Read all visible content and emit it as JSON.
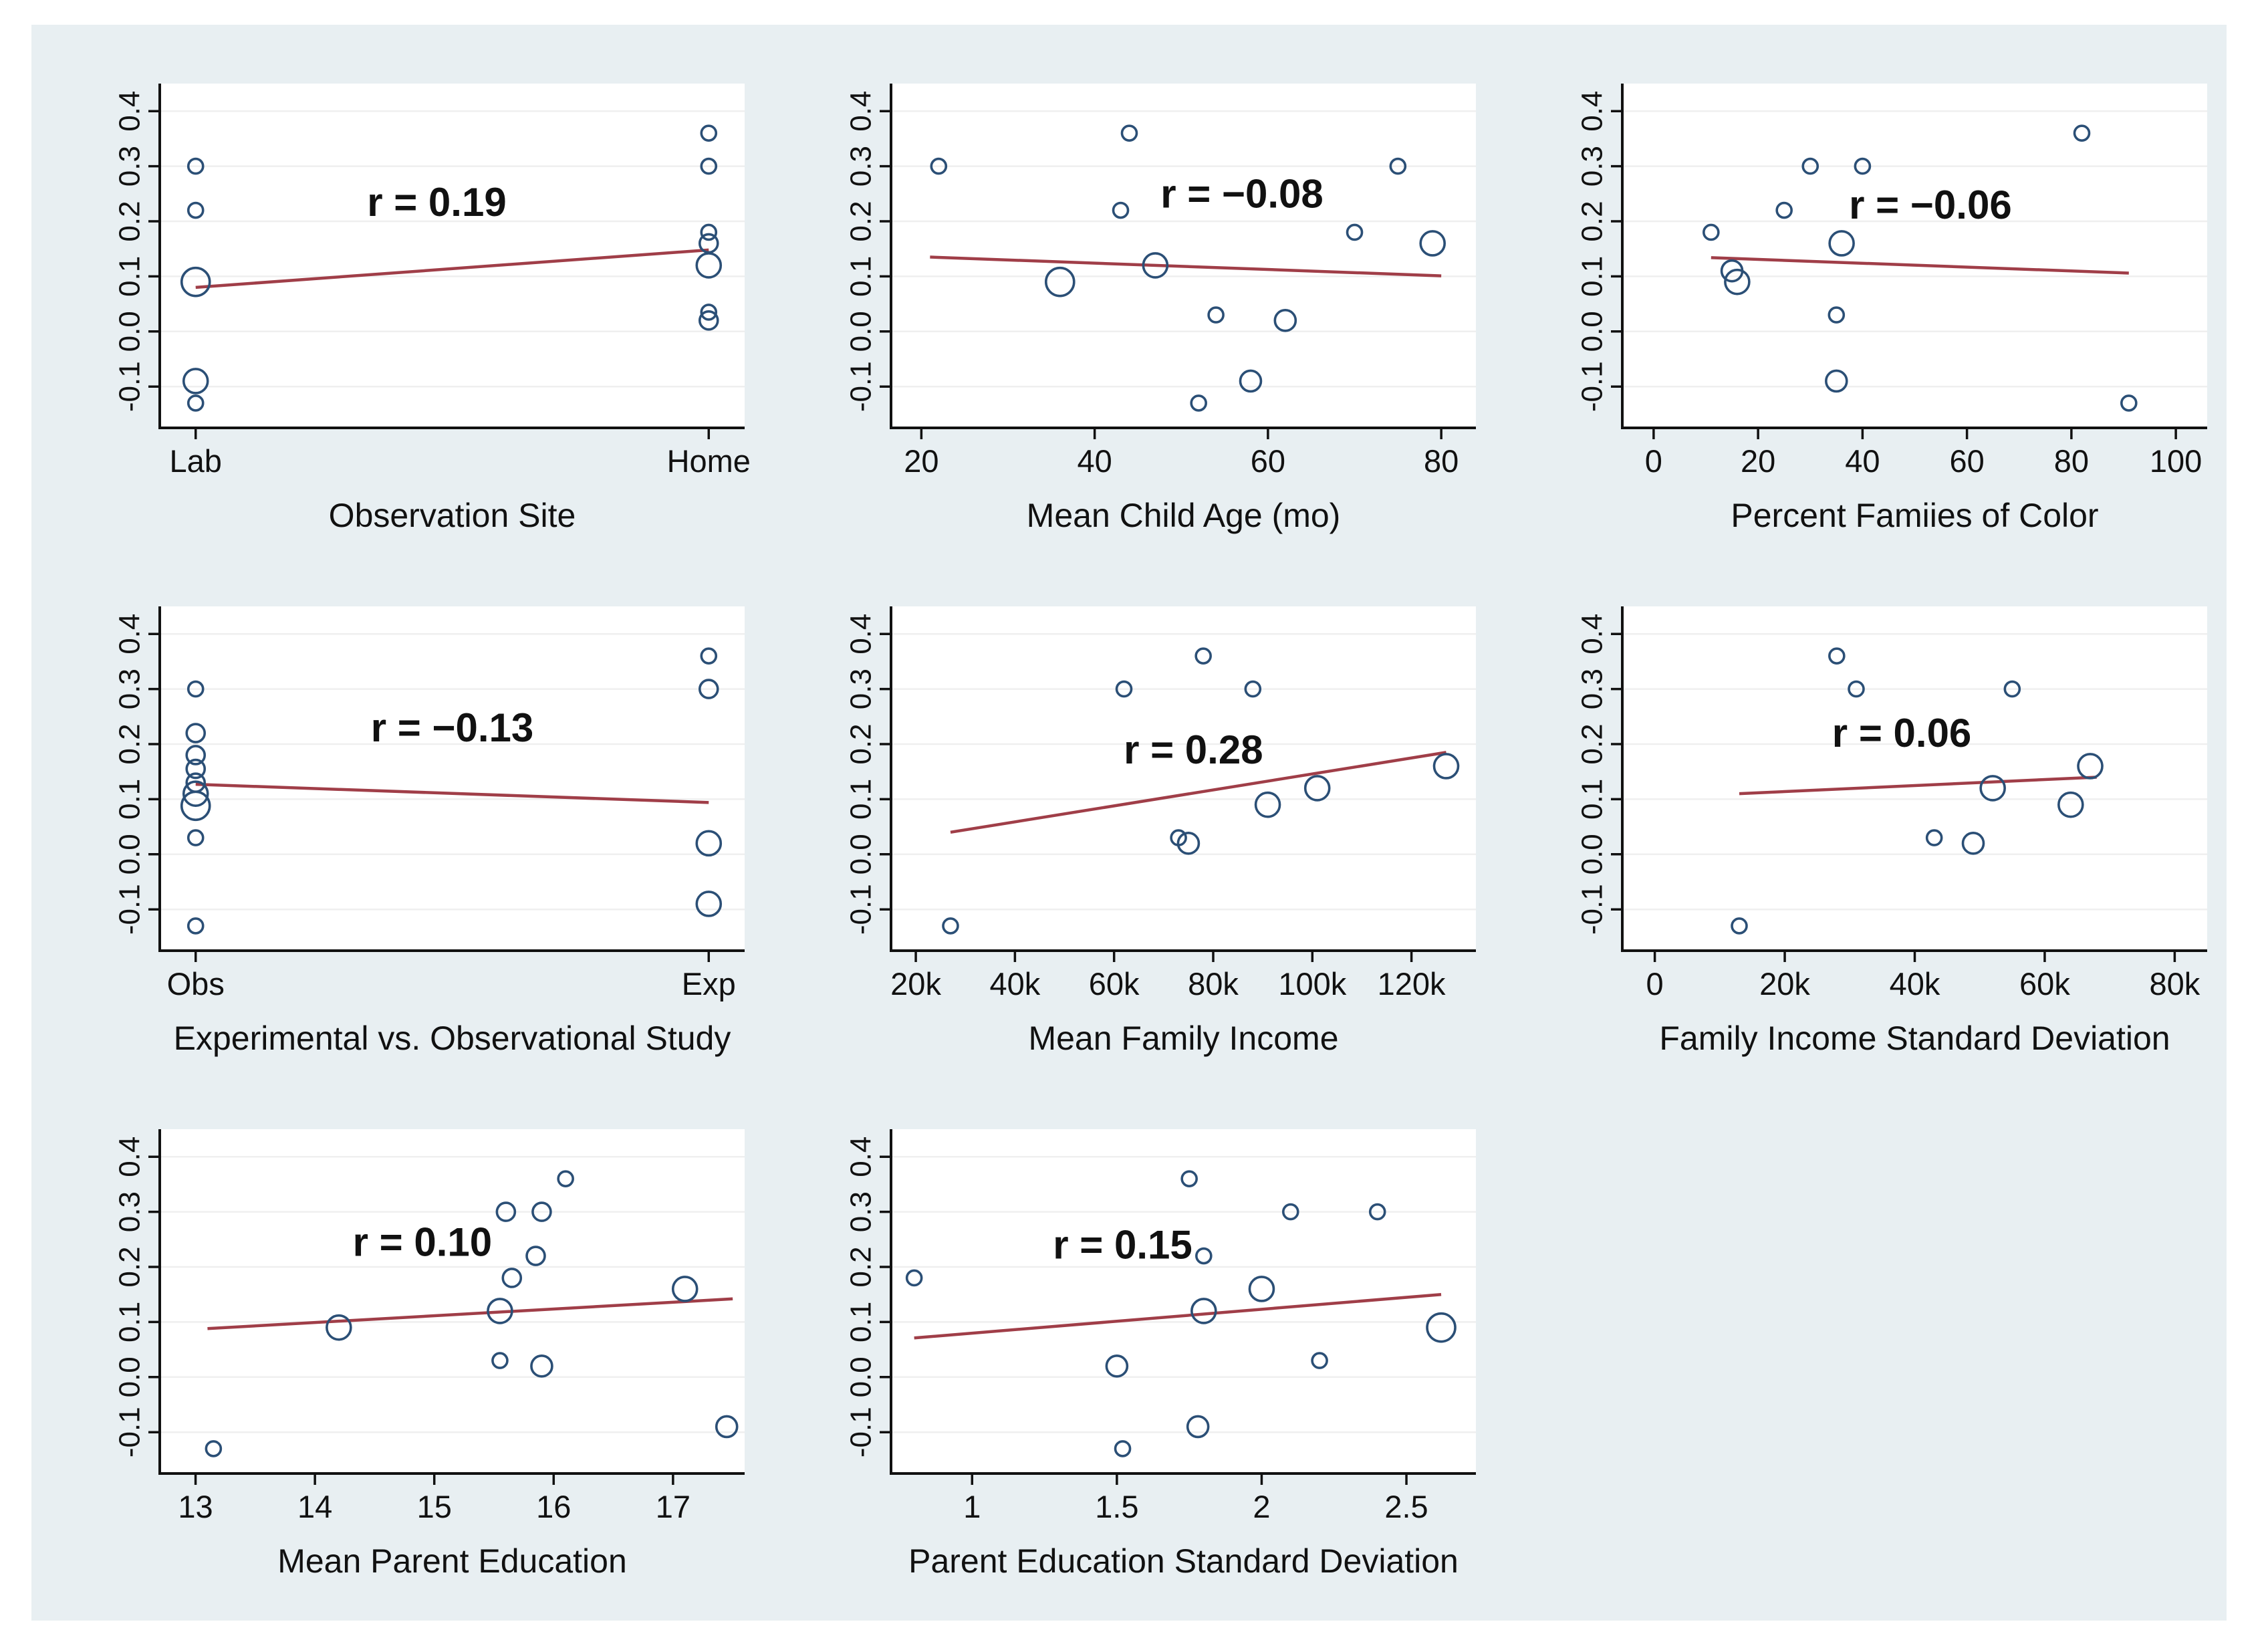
{
  "figure": {
    "page_background": "#ffffff",
    "canvas_background": "#e8eff2",
    "plot_background": "#ffffff",
    "marker_color": "#2b4f76",
    "fit_line_color": "#a03e48",
    "grid_color": "#efefef",
    "axis_color": "#111111",
    "text_color": "#111111",
    "marker_radius": {
      "1": 11,
      "1.5": 13.5,
      "2": 15.5,
      "2.5": 18,
      "3": 21
    }
  },
  "y_axis": {
    "lim": [
      -0.175,
      0.45
    ],
    "ticks": [
      {
        "v": -0.1,
        "label": "-0.1"
      },
      {
        "v": 0.0,
        "label": "0.0"
      },
      {
        "v": 0.1,
        "label": "0.1"
      },
      {
        "v": 0.2,
        "label": "0.2"
      },
      {
        "v": 0.3,
        "label": "0.3"
      },
      {
        "v": 0.4,
        "label": "0.4"
      }
    ]
  },
  "chart_data": [
    {
      "type": "scatter",
      "xlabel": "Observation Site",
      "r_label": "r = 0.19",
      "r_pos": [
        0.47,
        0.21
      ],
      "xlim": [
        -0.07,
        1.07
      ],
      "x_ticks": [
        {
          "v": 0,
          "label": "Lab"
        },
        {
          "v": 1,
          "label": "Home"
        }
      ],
      "fit": [
        0,
        0.08,
        1,
        0.148
      ],
      "points": [
        [
          0,
          0.3,
          "1"
        ],
        [
          0,
          0.22,
          "1"
        ],
        [
          0,
          0.09,
          "3"
        ],
        [
          0,
          -0.09,
          "2.5"
        ],
        [
          0,
          -0.13,
          "1"
        ],
        [
          1,
          0.36,
          "1"
        ],
        [
          1,
          0.3,
          "1"
        ],
        [
          1,
          0.18,
          "1"
        ],
        [
          1,
          0.16,
          "1.5"
        ],
        [
          1,
          0.12,
          "2.5"
        ],
        [
          1,
          0.035,
          "1"
        ],
        [
          1,
          0.02,
          "1.5"
        ]
      ]
    },
    {
      "type": "scatter",
      "xlabel": "Mean Child Age (mo)",
      "r_label": "r = −0.08",
      "r_pos": [
        57,
        0.225
      ],
      "xlim": [
        16.5,
        84
      ],
      "x_ticks": [
        {
          "v": 20,
          "label": "20"
        },
        {
          "v": 40,
          "label": "40"
        },
        {
          "v": 60,
          "label": "60"
        },
        {
          "v": 80,
          "label": "80"
        }
      ],
      "fit": [
        21,
        0.135,
        80,
        0.101
      ],
      "points": [
        [
          22,
          0.3,
          "1"
        ],
        [
          43,
          0.22,
          "1"
        ],
        [
          44,
          0.36,
          "1"
        ],
        [
          36,
          0.09,
          "3"
        ],
        [
          47,
          0.12,
          "2.5"
        ],
        [
          54,
          0.03,
          "1"
        ],
        [
          62,
          0.02,
          "2"
        ],
        [
          52,
          -0.13,
          "1"
        ],
        [
          58,
          -0.09,
          "2"
        ],
        [
          70,
          0.18,
          "1"
        ],
        [
          75,
          0.3,
          "1"
        ],
        [
          79,
          0.16,
          "2.5"
        ]
      ]
    },
    {
      "type": "scatter",
      "xlabel": "Percent Famiies of Color",
      "r_label": "r = −0.06",
      "r_pos": [
        53,
        0.205
      ],
      "xlim": [
        -6,
        106
      ],
      "x_ticks": [
        {
          "v": 0,
          "label": "0"
        },
        {
          "v": 20,
          "label": "20"
        },
        {
          "v": 40,
          "label": "40"
        },
        {
          "v": 60,
          "label": "60"
        },
        {
          "v": 80,
          "label": "80"
        },
        {
          "v": 100,
          "label": "100"
        }
      ],
      "fit": [
        11,
        0.134,
        91,
        0.106
      ],
      "points": [
        [
          11,
          0.18,
          "1"
        ],
        [
          15,
          0.11,
          "2"
        ],
        [
          16,
          0.09,
          "2.5"
        ],
        [
          25,
          0.22,
          "1"
        ],
        [
          30,
          0.3,
          "1"
        ],
        [
          36,
          0.16,
          "2.5"
        ],
        [
          40,
          0.3,
          "1"
        ],
        [
          35,
          0.03,
          "1"
        ],
        [
          35,
          -0.09,
          "2"
        ],
        [
          82,
          0.36,
          "1"
        ],
        [
          91,
          -0.13,
          "1"
        ]
      ]
    },
    {
      "type": "scatter",
      "xlabel": "Experimental vs. Observational Study",
      "r_label": "r = −0.13",
      "r_pos": [
        0.5,
        0.205
      ],
      "xlim": [
        -0.07,
        1.07
      ],
      "x_ticks": [
        {
          "v": 0,
          "label": "Obs"
        },
        {
          "v": 1,
          "label": "Exp"
        }
      ],
      "fit": [
        0,
        0.127,
        1,
        0.094
      ],
      "points": [
        [
          0,
          0.3,
          "1"
        ],
        [
          0,
          0.22,
          "1.5"
        ],
        [
          0,
          0.18,
          "1.5"
        ],
        [
          0,
          0.155,
          "1.5"
        ],
        [
          0,
          0.13,
          "1.5"
        ],
        [
          0,
          0.11,
          "2.5"
        ],
        [
          0,
          0.088,
          "3"
        ],
        [
          0,
          0.03,
          "1"
        ],
        [
          0,
          -0.13,
          "1"
        ],
        [
          1,
          0.36,
          "1"
        ],
        [
          1,
          0.3,
          "1.5"
        ],
        [
          1,
          0.02,
          "2.5"
        ],
        [
          1,
          -0.09,
          "2.5"
        ]
      ]
    },
    {
      "type": "scatter",
      "xlabel": "Mean Family Income",
      "r_label": "r = 0.28",
      "r_pos": [
        76,
        0.165
      ],
      "xlim": [
        15,
        133
      ],
      "x_ticks": [
        {
          "v": 20,
          "label": "20k"
        },
        {
          "v": 40,
          "label": "40k"
        },
        {
          "v": 60,
          "label": "60k"
        },
        {
          "v": 80,
          "label": "80k"
        },
        {
          "v": 100,
          "label": "100k"
        },
        {
          "v": 120,
          "label": "120k"
        }
      ],
      "fit": [
        27,
        0.04,
        127,
        0.185
      ],
      "points": [
        [
          27,
          -0.13,
          "1"
        ],
        [
          62,
          0.3,
          "1"
        ],
        [
          78,
          0.36,
          "1"
        ],
        [
          88,
          0.3,
          "1"
        ],
        [
          73,
          0.03,
          "1"
        ],
        [
          75,
          0.02,
          "2"
        ],
        [
          91,
          0.09,
          "2.5"
        ],
        [
          101,
          0.12,
          "2.5"
        ],
        [
          127,
          0.16,
          "2.5"
        ]
      ]
    },
    {
      "type": "scatter",
      "xlabel": "Family Income Standard Deviation",
      "r_label": "r = 0.06",
      "r_pos": [
        38,
        0.195
      ],
      "xlim": [
        -5,
        85
      ],
      "x_ticks": [
        {
          "v": 0,
          "label": "0"
        },
        {
          "v": 20,
          "label": "20k"
        },
        {
          "v": 40,
          "label": "40k"
        },
        {
          "v": 60,
          "label": "60k"
        },
        {
          "v": 80,
          "label": "80k"
        }
      ],
      "fit": [
        13,
        0.11,
        68,
        0.14
      ],
      "points": [
        [
          13,
          -0.13,
          "1"
        ],
        [
          28,
          0.36,
          "1"
        ],
        [
          31,
          0.3,
          "1"
        ],
        [
          55,
          0.3,
          "1"
        ],
        [
          43,
          0.03,
          "1"
        ],
        [
          49,
          0.02,
          "2"
        ],
        [
          52,
          0.12,
          "2.5"
        ],
        [
          64,
          0.09,
          "2.5"
        ],
        [
          67,
          0.16,
          "2.5"
        ]
      ]
    },
    {
      "type": "scatter",
      "xlabel": "Mean Parent Education",
      "r_label": "r = 0.10",
      "r_pos": [
        14.9,
        0.22
      ],
      "xlim": [
        12.7,
        17.6
      ],
      "x_ticks": [
        {
          "v": 13,
          "label": "13"
        },
        {
          "v": 14,
          "label": "14"
        },
        {
          "v": 15,
          "label": "15"
        },
        {
          "v": 16,
          "label": "16"
        },
        {
          "v": 17,
          "label": "17"
        }
      ],
      "fit": [
        13.1,
        0.088,
        17.5,
        0.142
      ],
      "points": [
        [
          13.15,
          -0.13,
          "1"
        ],
        [
          14.2,
          0.09,
          "2.5"
        ],
        [
          15.55,
          0.12,
          "2.5"
        ],
        [
          15.55,
          0.03,
          "1"
        ],
        [
          15.6,
          0.3,
          "1.5"
        ],
        [
          15.65,
          0.18,
          "1.5"
        ],
        [
          15.85,
          0.22,
          "1.5"
        ],
        [
          15.9,
          0.3,
          "1.5"
        ],
        [
          15.9,
          0.02,
          "2"
        ],
        [
          16.1,
          0.36,
          "1"
        ],
        [
          17.1,
          0.16,
          "2.5"
        ],
        [
          17.45,
          -0.09,
          "2"
        ]
      ]
    },
    {
      "type": "scatter",
      "xlabel": "Parent Education Standard Deviation",
      "r_label": "r = 0.15",
      "r_pos": [
        1.52,
        0.215
      ],
      "xlim": [
        0.72,
        2.74
      ],
      "x_ticks": [
        {
          "v": 1,
          "label": "1"
        },
        {
          "v": 1.5,
          "label": "1.5"
        },
        {
          "v": 2,
          "label": "2"
        },
        {
          "v": 2.5,
          "label": "2.5"
        }
      ],
      "fit": [
        0.8,
        0.071,
        2.62,
        0.15
      ],
      "points": [
        [
          0.8,
          0.18,
          "1"
        ],
        [
          1.75,
          0.36,
          "1"
        ],
        [
          1.8,
          0.22,
          "1"
        ],
        [
          2.1,
          0.3,
          "1"
        ],
        [
          2.4,
          0.3,
          "1"
        ],
        [
          1.8,
          0.12,
          "2.5"
        ],
        [
          2.0,
          0.16,
          "2.5"
        ],
        [
          1.5,
          0.02,
          "2"
        ],
        [
          2.2,
          0.03,
          "1"
        ],
        [
          1.78,
          -0.09,
          "2"
        ],
        [
          1.52,
          -0.13,
          "1"
        ],
        [
          2.62,
          0.09,
          "3"
        ]
      ]
    }
  ]
}
